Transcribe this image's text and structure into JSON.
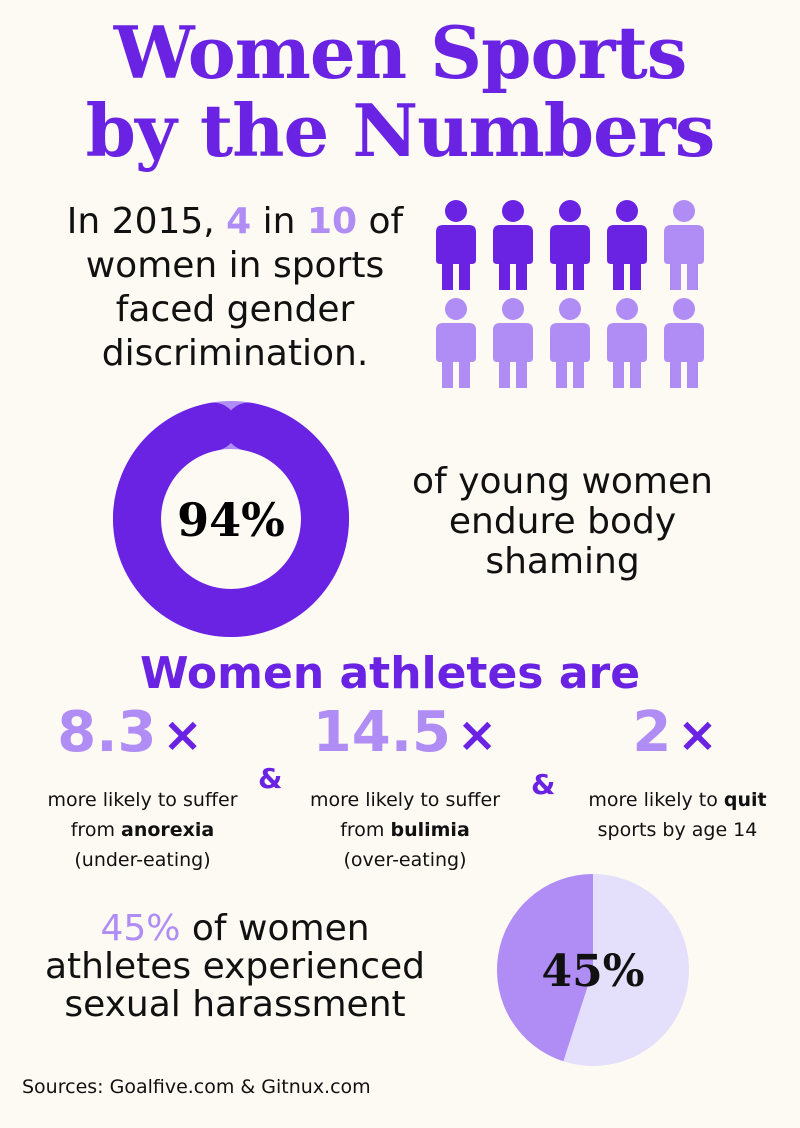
{
  "title_line1": "Women Sports",
  "title_line2": "by the Numbers",
  "stat1": {
    "prefix": "In 2015, ",
    "num": "4",
    "mid": " in ",
    "den": "10",
    "suffix": " of women in sports faced gender discrimination."
  },
  "people": {
    "total": 10,
    "highlighted": 4
  },
  "donut": {
    "label": "94%",
    "value": 94
  },
  "stat2": "of young women endure body shaming",
  "subhead": "Women athletes are",
  "multipliers": [
    {
      "value": "8.3",
      "symbol": "×",
      "line1": "more likely to suffer",
      "line2_pre": "from ",
      "line2_bold": "anorexia",
      "line3": "(under-eating)"
    },
    {
      "value": "14.5",
      "symbol": "×",
      "line1": "more likely to suffer",
      "line2_pre": "from ",
      "line2_bold": "bulimia",
      "line3": "(over-eating)"
    },
    {
      "value": "2",
      "symbol": "×",
      "line1_pre": "more likely to ",
      "line1_bold": "quit",
      "line2": "sports by age 14"
    }
  ],
  "ampersand": "&",
  "stat3": {
    "hl": "45%",
    "rest": " of women athletes experienced sexual harassment"
  },
  "pie": {
    "label": "45%",
    "value": 45
  },
  "sources": "Sources: Goalfive.com & Gitnux.com",
  "colors": {
    "primary": "#6a22e3",
    "light": "#b08cf5",
    "pale": "#e4e0fb",
    "bg": "#fdf9f3"
  },
  "chart_data": [
    {
      "type": "pie",
      "values": [
        94,
        6
      ],
      "categories": [
        "",
        ""
      ]
    },
    {
      "type": "pie",
      "values": [
        45,
        55
      ],
      "categories": [
        "",
        ""
      ]
    }
  ]
}
